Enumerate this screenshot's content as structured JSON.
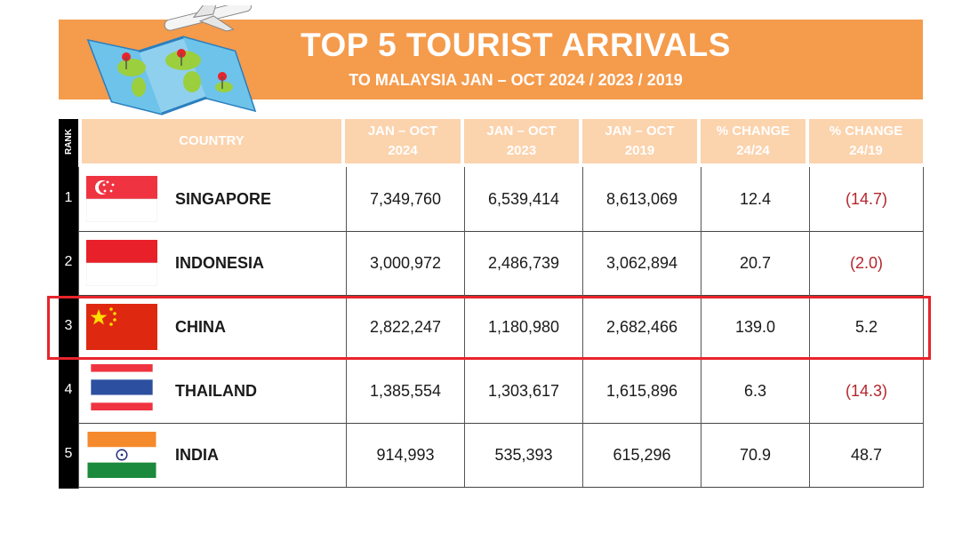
{
  "header": {
    "title": "TOP 5 TOURIST ARRIVALS",
    "subtitle": "TO MALAYSIA JAN – OCT 2024 / 2023 / 2019"
  },
  "table": {
    "rank_label": "RANK",
    "columns": [
      {
        "line1": "COUNTRY",
        "line2": ""
      },
      {
        "line1": "JAN – OCT",
        "line2": "2024"
      },
      {
        "line1": "JAN – OCT",
        "line2": "2023"
      },
      {
        "line1": "JAN – OCT",
        "line2": "2019"
      },
      {
        "line1": "% CHANGE",
        "line2": "24/24"
      },
      {
        "line1": "% CHANGE",
        "line2": "24/19"
      }
    ],
    "rows": [
      {
        "rank": "1",
        "country": "SINGAPORE",
        "flag_icon": "singapore-flag-icon",
        "y2024": "7,349,760",
        "y2023": "6,539,414",
        "y2019": "8,613,069",
        "chg1": "12.4",
        "chg2": "(14.7)"
      },
      {
        "rank": "2",
        "country": "INDONESIA",
        "flag_icon": "indonesia-flag-icon",
        "y2024": "3,000,972",
        "y2023": "2,486,739",
        "y2019": "3,062,894",
        "chg1": "20.7",
        "chg2": "(2.0)"
      },
      {
        "rank": "3",
        "country": "CHINA",
        "flag_icon": "china-flag-icon",
        "y2024": "2,822,247",
        "y2023": "1,180,980",
        "y2019": "2,682,466",
        "chg1": "139.0",
        "chg2": "5.2"
      },
      {
        "rank": "4",
        "country": "THAILAND",
        "flag_icon": "thailand-flag-icon",
        "y2024": "1,385,554",
        "y2023": "1,303,617",
        "y2019": "1,615,896",
        "chg1": "6.3",
        "chg2": "(14.3)"
      },
      {
        "rank": "5",
        "country": "INDIA",
        "flag_icon": "india-flag-icon",
        "y2024": "914,993",
        "y2023": "535,393",
        "y2019": "615,296",
        "chg1": "70.9",
        "chg2": "48.7"
      }
    ]
  },
  "colors": {
    "banner": "#f59b4c",
    "header_cells": "#fbd3ad",
    "negative_text": "#b3262d",
    "highlight_border": "#e8242b"
  }
}
